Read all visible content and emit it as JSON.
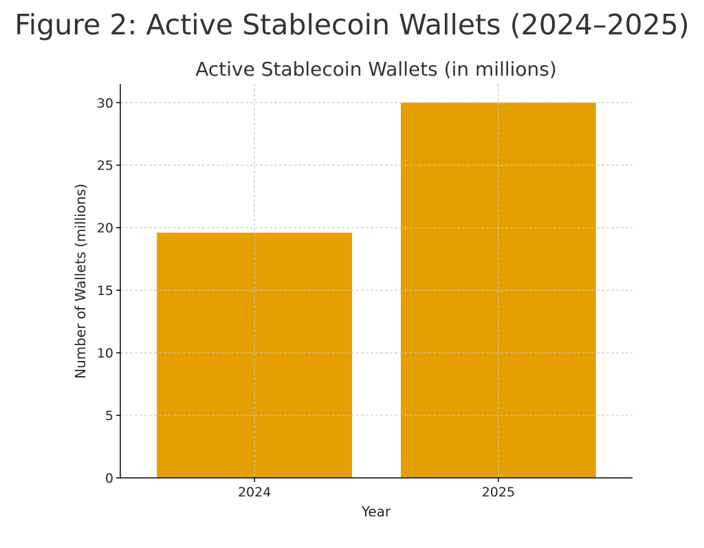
{
  "figure": {
    "title": "Figure 2: Active Stablecoin Wallets (2024–2025)"
  },
  "chart_data": {
    "type": "bar",
    "title": "Active Stablecoin Wallets (in millions)",
    "xlabel": "Year",
    "ylabel": "Number of Wallets (millions)",
    "categories": [
      "2024",
      "2025"
    ],
    "values": [
      19.6,
      30
    ],
    "ylim": [
      0,
      31.5
    ],
    "yticks": [
      0,
      5,
      10,
      15,
      20,
      25,
      30
    ],
    "bar_color": "#E69F00",
    "grid": true
  }
}
